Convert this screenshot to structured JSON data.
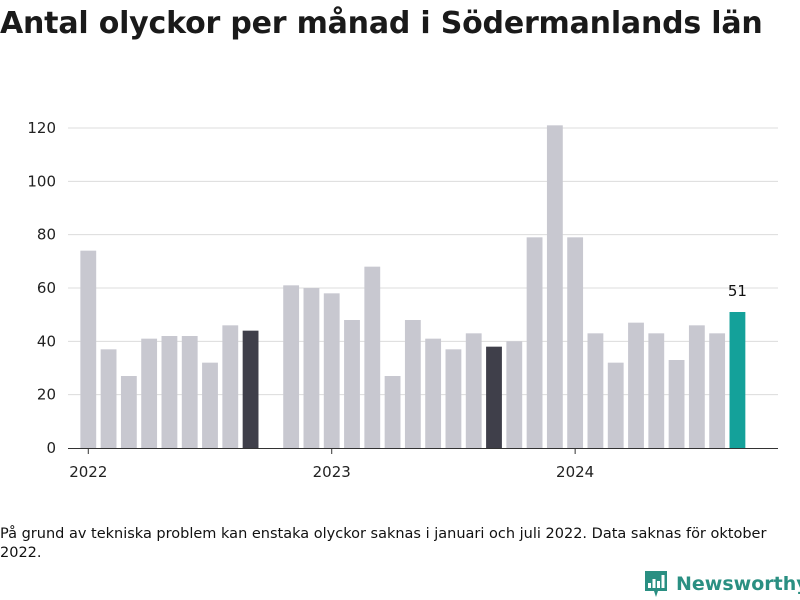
{
  "title": "Antal olyckor per månad i Södermanlands län",
  "footnote": "På grund av tekniska problem kan enstaka olyckor saknas i januari och juli 2022. Data saknas för oktober 2022.",
  "brand": {
    "name": "Newsworthy",
    "icon": "newsworthy-logo-icon",
    "color": "#2a8f82"
  },
  "colors": {
    "default": "#c8c8d0",
    "highlight": "#3f3f4a",
    "latest": "#14a19a"
  },
  "chart_data": {
    "type": "bar",
    "title": "Antal olyckor per månad i Södermanlands län",
    "xlabel": "",
    "ylabel": "",
    "ylim": [
      0,
      120
    ],
    "yticks": [
      0,
      20,
      40,
      60,
      80,
      100,
      120
    ],
    "xlim": [
      "2021-12",
      "2024-11"
    ],
    "xticks": [
      {
        "date": "2022-01",
        "label": "2022"
      },
      {
        "date": "2023-01",
        "label": "2023"
      },
      {
        "date": "2024-01",
        "label": "2024"
      }
    ],
    "grid": true,
    "points": [
      {
        "month": "2022-01",
        "value": 74,
        "color": "default"
      },
      {
        "month": "2022-02",
        "value": 37,
        "color": "default"
      },
      {
        "month": "2022-03",
        "value": 27,
        "color": "default"
      },
      {
        "month": "2022-04",
        "value": 41,
        "color": "default"
      },
      {
        "month": "2022-05",
        "value": 42,
        "color": "default"
      },
      {
        "month": "2022-06",
        "value": 42,
        "color": "default"
      },
      {
        "month": "2022-07",
        "value": 32,
        "color": "default"
      },
      {
        "month": "2022-08",
        "value": 46,
        "color": "default"
      },
      {
        "month": "2022-09",
        "value": 44,
        "color": "highlight"
      },
      {
        "month": "2022-11",
        "value": 61,
        "color": "default"
      },
      {
        "month": "2022-12",
        "value": 60,
        "color": "default"
      },
      {
        "month": "2023-01",
        "value": 58,
        "color": "default"
      },
      {
        "month": "2023-02",
        "value": 48,
        "color": "default"
      },
      {
        "month": "2023-03",
        "value": 68,
        "color": "default"
      },
      {
        "month": "2023-04",
        "value": 27,
        "color": "default"
      },
      {
        "month": "2023-05",
        "value": 48,
        "color": "default"
      },
      {
        "month": "2023-06",
        "value": 41,
        "color": "default"
      },
      {
        "month": "2023-07",
        "value": 37,
        "color": "default"
      },
      {
        "month": "2023-08",
        "value": 43,
        "color": "default"
      },
      {
        "month": "2023-09",
        "value": 38,
        "color": "highlight"
      },
      {
        "month": "2023-10",
        "value": 40,
        "color": "default"
      },
      {
        "month": "2023-11",
        "value": 79,
        "color": "default"
      },
      {
        "month": "2023-12",
        "value": 121,
        "color": "default"
      },
      {
        "month": "2024-01",
        "value": 79,
        "color": "default"
      },
      {
        "month": "2024-02",
        "value": 43,
        "color": "default"
      },
      {
        "month": "2024-03",
        "value": 32,
        "color": "default"
      },
      {
        "month": "2024-04",
        "value": 47,
        "color": "default"
      },
      {
        "month": "2024-05",
        "value": 43,
        "color": "default"
      },
      {
        "month": "2024-06",
        "value": 33,
        "color": "default"
      },
      {
        "month": "2024-07",
        "value": 46,
        "color": "default"
      },
      {
        "month": "2024-08",
        "value": 43,
        "color": "default"
      },
      {
        "month": "2024-09",
        "value": 51,
        "color": "latest",
        "label": "51"
      }
    ]
  }
}
